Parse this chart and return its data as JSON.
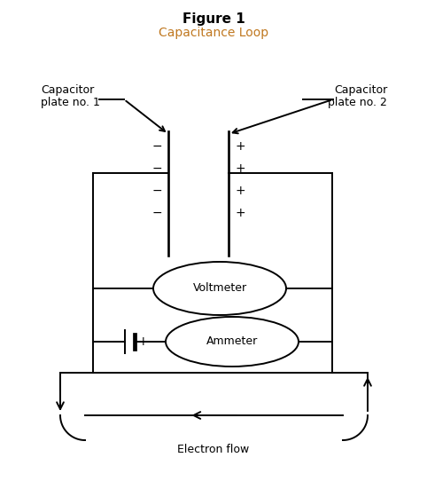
{
  "title": "Figure 1",
  "subtitle": "Capacitance Loop",
  "title_color": "#000000",
  "subtitle_color": "#c07820",
  "electron_flow_label": "Electron flow",
  "voltmeter_label": "Voltmeter",
  "ammeter_label": "Ammeter",
  "cap_label1_line1": "Capacitor",
  "cap_label1_line2": "plate no. 1",
  "cap_label2_line1": "Capacitor",
  "cap_label2_line2": "plate no. 2",
  "bg_color": "#ffffff",
  "line_color": "#000000",
  "fontsize_title": 11,
  "fontsize_subtitle": 10,
  "fontsize_labels": 9,
  "fontsize_signs": 10
}
